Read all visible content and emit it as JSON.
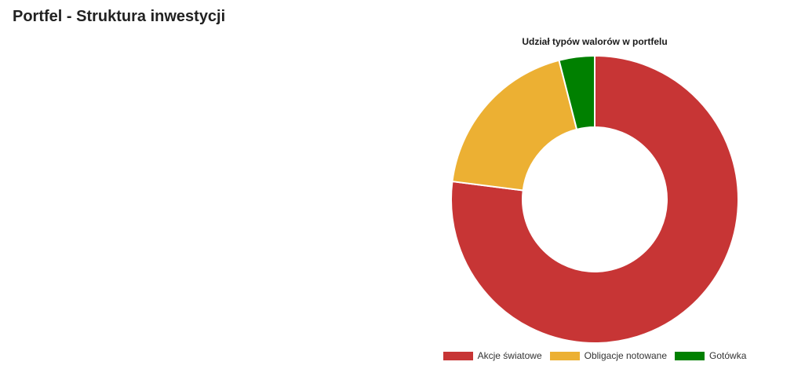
{
  "page": {
    "title": "Portfel - Struktura inwestycji"
  },
  "chart_data": {
    "type": "pie",
    "variant": "donut",
    "title": "Udział typów walorów w portfelu",
    "categories": [
      "Akcje światowe",
      "Obligacje notowane",
      "Gotówka"
    ],
    "values": [
      77,
      19,
      4
    ],
    "colors": [
      "#c73535",
      "#ecb033",
      "#008000"
    ],
    "legend_position": "bottom"
  }
}
